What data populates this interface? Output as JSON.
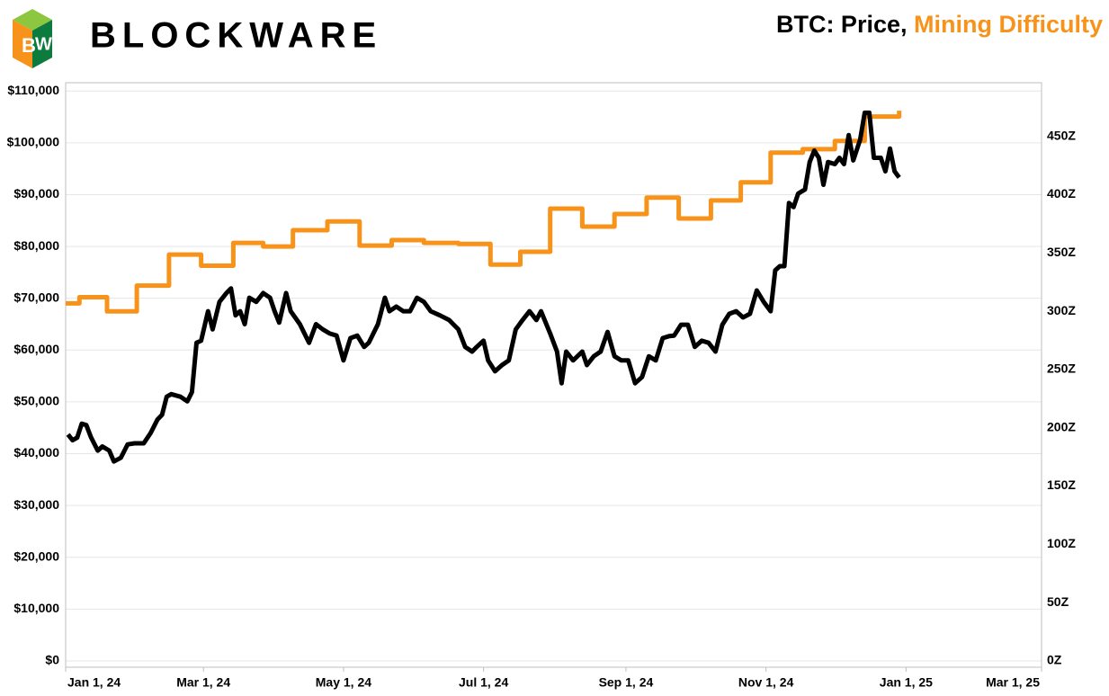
{
  "brand": "BLOCKWARE",
  "chart_data": {
    "type": "line",
    "title": [
      "BTC: Price,",
      "Mining Difficulty"
    ],
    "title_colors": [
      "#000000",
      "#f7931a"
    ],
    "xlim": [
      "2024-01-01",
      "2025-03-01"
    ],
    "xticks": [
      {
        "value": "2024-01-01",
        "label": "Jan 1, 24"
      },
      {
        "value": "2024-03-01",
        "label": "Mar 1, 24"
      },
      {
        "value": "2024-05-01",
        "label": "May 1, 24"
      },
      {
        "value": "2024-07-01",
        "label": "Jul 1, 24"
      },
      {
        "value": "2024-09-01",
        "label": "Sep 1, 24"
      },
      {
        "value": "2024-11-01",
        "label": "Nov 1, 24"
      },
      {
        "value": "2025-01-01",
        "label": "Jan 1, 25"
      },
      {
        "value": "2025-03-01",
        "label": "Mar 1, 25"
      }
    ],
    "ylim": [
      0,
      111600
    ],
    "yticks": [
      {
        "value": 0,
        "label": "$0"
      },
      {
        "value": 10000,
        "label": "$10,000"
      },
      {
        "value": 20000,
        "label": "$20,000"
      },
      {
        "value": 30000,
        "label": "$30,000"
      },
      {
        "value": 40000,
        "label": "$40,000"
      },
      {
        "value": 50000,
        "label": "$50,000"
      },
      {
        "value": 60000,
        "label": "$60,000"
      },
      {
        "value": 70000,
        "label": "$70,000"
      },
      {
        "value": 80000,
        "label": "$80,000"
      },
      {
        "value": 90000,
        "label": "$90,000"
      },
      {
        "value": 100000,
        "label": "$100,000"
      },
      {
        "value": 110000,
        "label": "$110,000"
      }
    ],
    "y2lim": [
      0,
      496
    ],
    "y2ticks": [
      {
        "value": 0,
        "label": "0Z"
      },
      {
        "value": 50,
        "label": "50Z"
      },
      {
        "value": 100,
        "label": "100Z"
      },
      {
        "value": 150,
        "label": "150Z"
      },
      {
        "value": 200,
        "label": "200Z"
      },
      {
        "value": 250,
        "label": "250Z"
      },
      {
        "value": 300,
        "label": "300Z"
      },
      {
        "value": 350,
        "label": "350Z"
      },
      {
        "value": 400,
        "label": "400Z"
      },
      {
        "value": 450,
        "label": "450Z"
      }
    ],
    "grid": true,
    "series": [
      {
        "color": "#000000",
        "axis": "y",
        "x": [
          "2024-01-02",
          "2024-01-04",
          "2024-01-06",
          "2024-01-08",
          "2024-01-10",
          "2024-01-12",
          "2024-01-15",
          "2024-01-17",
          "2024-01-20",
          "2024-01-22",
          "2024-01-25",
          "2024-01-28",
          "2024-01-31",
          "2024-02-04",
          "2024-02-07",
          "2024-02-10",
          "2024-02-12",
          "2024-02-14",
          "2024-02-16",
          "2024-02-20",
          "2024-02-23",
          "2024-02-25",
          "2024-02-27",
          "2024-02-29",
          "2024-03-03",
          "2024-03-05",
          "2024-03-08",
          "2024-03-11",
          "2024-03-13",
          "2024-03-15",
          "2024-03-17",
          "2024-03-19",
          "2024-03-21",
          "2024-03-24",
          "2024-03-27",
          "2024-03-30",
          "2024-04-01",
          "2024-04-03",
          "2024-04-06",
          "2024-04-08",
          "2024-04-12",
          "2024-04-16",
          "2024-04-19",
          "2024-04-22",
          "2024-04-25",
          "2024-04-28",
          "2024-05-01",
          "2024-05-04",
          "2024-05-07",
          "2024-05-10",
          "2024-05-12",
          "2024-05-16",
          "2024-05-19",
          "2024-05-21",
          "2024-05-24",
          "2024-05-27",
          "2024-05-30",
          "2024-06-02",
          "2024-06-05",
          "2024-06-08",
          "2024-06-12",
          "2024-06-16",
          "2024-06-20",
          "2024-06-23",
          "2024-06-26",
          "2024-06-28",
          "2024-07-01",
          "2024-07-03",
          "2024-07-06",
          "2024-07-09",
          "2024-07-12",
          "2024-07-15",
          "2024-07-18",
          "2024-07-21",
          "2024-07-24",
          "2024-07-26",
          "2024-07-30",
          "2024-08-02",
          "2024-08-04",
          "2024-08-06",
          "2024-08-09",
          "2024-08-13",
          "2024-08-15",
          "2024-08-18",
          "2024-08-21",
          "2024-08-24",
          "2024-08-27",
          "2024-08-30",
          "2024-09-02",
          "2024-09-05",
          "2024-09-08",
          "2024-09-11",
          "2024-09-14",
          "2024-09-17",
          "2024-09-20",
          "2024-09-22",
          "2024-09-25",
          "2024-09-28",
          "2024-10-01",
          "2024-10-04",
          "2024-10-07",
          "2024-10-10",
          "2024-10-13",
          "2024-10-16",
          "2024-10-19",
          "2024-10-22",
          "2024-10-25",
          "2024-10-28",
          "2024-10-31",
          "2024-11-03",
          "2024-11-05",
          "2024-11-07",
          "2024-11-09",
          "2024-11-11",
          "2024-11-13",
          "2024-11-15",
          "2024-11-18",
          "2024-11-20",
          "2024-11-22",
          "2024-11-24",
          "2024-11-26",
          "2024-11-28",
          "2024-12-01",
          "2024-12-03",
          "2024-12-05",
          "2024-12-07",
          "2024-12-09",
          "2024-12-12",
          "2024-12-14",
          "2024-12-16",
          "2024-12-18",
          "2024-12-21",
          "2024-12-23",
          "2024-12-25",
          "2024-12-27",
          "2024-12-29"
        ],
        "values": [
          43700,
          42600,
          43100,
          45800,
          45500,
          43200,
          40600,
          41400,
          40600,
          38500,
          39200,
          41800,
          42000,
          42000,
          44000,
          46600,
          47500,
          51000,
          51500,
          51000,
          50100,
          51900,
          61400,
          61800,
          67500,
          64000,
          69300,
          71000,
          71900,
          66700,
          67500,
          65000,
          70100,
          69300,
          71000,
          70100,
          67500,
          65300,
          71000,
          67500,
          65000,
          61400,
          65000,
          64000,
          63200,
          62800,
          58000,
          62300,
          62800,
          60600,
          61400,
          65000,
          70100,
          67500,
          68400,
          67500,
          67500,
          70100,
          69300,
          67500,
          66700,
          65800,
          64000,
          60600,
          59700,
          60600,
          61800,
          58000,
          55900,
          57100,
          58000,
          64000,
          65800,
          67500,
          65800,
          67500,
          63200,
          59700,
          53600,
          59700,
          58000,
          59700,
          57100,
          58800,
          59700,
          63500,
          58800,
          58000,
          58000,
          53600,
          54800,
          58800,
          58000,
          62300,
          62700,
          62800,
          64900,
          64900,
          60600,
          61800,
          61400,
          59700,
          64900,
          67000,
          67500,
          66300,
          67000,
          71500,
          69300,
          67500,
          75400,
          76200,
          76200,
          88400,
          87600,
          90200,
          91000,
          96300,
          98500,
          97100,
          91900,
          96300,
          95900,
          97100,
          95900,
          101500,
          96600,
          100600,
          105800,
          105800,
          97100,
          97100,
          94500,
          98900,
          94500,
          93300
        ]
      },
      {
        "color": "#f7931a",
        "axis": "y2",
        "step": true,
        "x": [
          "2024-01-01",
          "2024-01-07",
          "2024-01-19",
          "2024-02-01",
          "2024-02-15",
          "2024-02-29",
          "2024-03-14",
          "2024-03-27",
          "2024-04-09",
          "2024-04-24",
          "2024-05-08",
          "2024-05-22",
          "2024-06-05",
          "2024-06-20",
          "2024-07-04",
          "2024-07-17",
          "2024-07-30",
          "2024-08-13",
          "2024-08-27",
          "2024-09-10",
          "2024-09-24",
          "2024-10-08",
          "2024-10-21",
          "2024-11-03",
          "2024-11-17",
          "2024-12-01",
          "2024-12-14",
          "2024-12-29"
        ],
        "values": [
          306.7,
          312,
          299.8,
          322,
          348.6,
          339,
          358.6,
          355.5,
          369.5,
          377,
          356.3,
          361,
          358.6,
          357.8,
          340,
          351,
          388,
          372.6,
          383.4,
          397.4,
          379.5,
          395,
          410.5,
          436,
          439,
          446,
          467,
          472
        ]
      }
    ]
  }
}
